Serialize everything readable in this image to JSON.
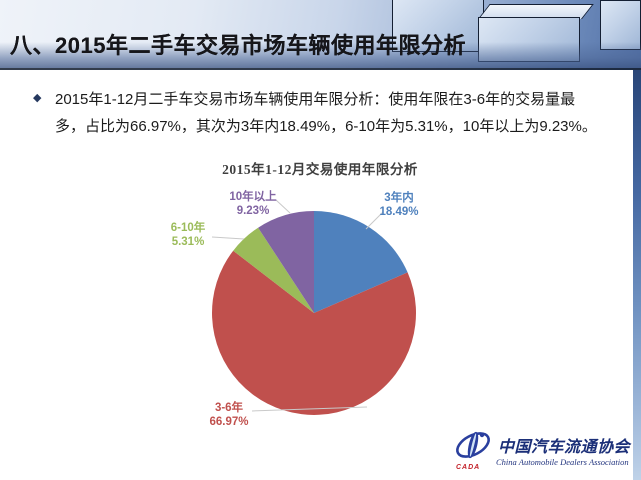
{
  "slide": {
    "title": "八、2015年二手车交易市场车辆使用年限分析",
    "bullet_glyph": "◆",
    "body_line1": "2015年1-12月二手车交易市场车辆使用年限分析：使用年限在3-6年的交易量最",
    "body_line2": "多，占比为66.97%，其次为3年内18.49%，6-10年为5.31%，10年以上为9.23%。"
  },
  "chart_data": {
    "type": "pie",
    "title": "2015年1-12月交易使用年限分析",
    "categories": [
      "3年内",
      "3-6年",
      "6-10年",
      "10年以上"
    ],
    "values": [
      18.49,
      66.97,
      5.31,
      9.23
    ],
    "unit": "%",
    "colors": [
      "#4F81BD",
      "#C0504D",
      "#9BBB59",
      "#8064A2"
    ],
    "start_angle_deg": 0,
    "direction": "clockwise",
    "legend_position": "none",
    "labels": [
      {
        "name": "3年内",
        "value": "18.49%"
      },
      {
        "name": "3-6年",
        "value": "66.97%"
      },
      {
        "name": "6-10年",
        "value": "5.31%"
      },
      {
        "name": "10年以上",
        "value": "9.23%"
      }
    ]
  },
  "footer": {
    "logo_acronym": "CADA",
    "org_name_zh": "中国汽车流通协会",
    "org_name_en": "China Automobile Dealers Association"
  },
  "theme": {
    "accent_blue": "#4F81BD",
    "accent_red": "#C0504D",
    "accent_green": "#9BBB59",
    "accent_purple": "#8064A2",
    "header_dark_line": "#121C2E"
  }
}
